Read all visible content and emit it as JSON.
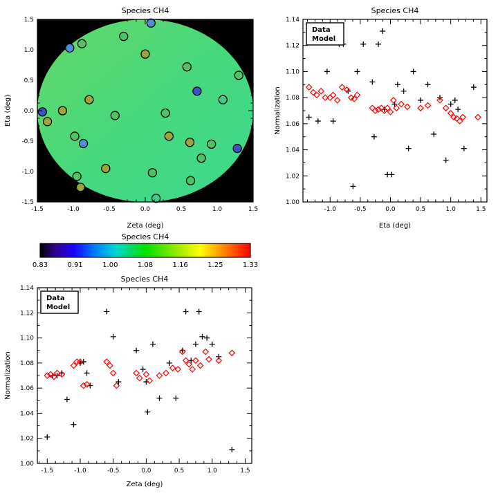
{
  "figure": {
    "background": "#ffffff"
  },
  "chart_data": [
    {
      "id": "disk",
      "type": "scatter",
      "title": "Species CH4",
      "xlabel": "Zeta (deg)",
      "ylabel": "Eta (deg)",
      "xlim": [
        -1.5,
        1.5
      ],
      "ylim": [
        -1.5,
        1.5
      ],
      "xticks": [
        -1.5,
        -1.0,
        -0.5,
        0.0,
        0.5,
        1.0,
        1.5
      ],
      "xtick_labels": [
        "-1.5",
        "-1.0",
        "-0.5",
        "0.0",
        "0.5",
        "1.0",
        "1.5"
      ],
      "yticks": [
        -1.5,
        -1.0,
        -0.5,
        0.0,
        0.5,
        1.0,
        1.5
      ],
      "ytick_labels": [
        "-1.5",
        "-1.0",
        "-0.5",
        "0.0",
        "0.5",
        "1.0",
        "1.5"
      ],
      "xminor": 3,
      "yminor": 3,
      "disk": {
        "outside": "#000000",
        "gradient": [
          "#62d868",
          "#48d87c",
          "#3bd98e"
        ]
      },
      "points": [
        {
          "x": -1.43,
          "y": -0.02,
          "c": "#3a52c4"
        },
        {
          "x": -1.36,
          "y": -0.18,
          "c": "#9aa63c"
        },
        {
          "x": -1.05,
          "y": 1.03,
          "c": "#4f8fd8"
        },
        {
          "x": -0.88,
          "y": 1.1,
          "c": "#4fc364"
        },
        {
          "x": -0.3,
          "y": 1.22,
          "c": "#4fc364"
        },
        {
          "x": 0.08,
          "y": 1.44,
          "c": "#4f8fd8"
        },
        {
          "x": 0.0,
          "y": 0.93,
          "c": "#9aa63c"
        },
        {
          "x": 0.58,
          "y": 0.72,
          "c": "#4fc364"
        },
        {
          "x": 0.72,
          "y": 0.32,
          "c": "#3a52c4"
        },
        {
          "x": 1.3,
          "y": 0.58,
          "c": "#4fc364"
        },
        {
          "x": 1.08,
          "y": 0.18,
          "c": "#45c98a"
        },
        {
          "x": -1.15,
          "y": 0.0,
          "c": "#9aa63c"
        },
        {
          "x": -0.78,
          "y": 0.18,
          "c": "#9aa63c"
        },
        {
          "x": -0.42,
          "y": -0.08,
          "c": "#4fc364"
        },
        {
          "x": 0.28,
          "y": -0.04,
          "c": "#4fc364"
        },
        {
          "x": 0.33,
          "y": -0.42,
          "c": "#9aa63c"
        },
        {
          "x": 0.62,
          "y": -0.52,
          "c": "#9aa63c"
        },
        {
          "x": 0.92,
          "y": -0.55,
          "c": "#4fc364"
        },
        {
          "x": 1.28,
          "y": -0.62,
          "c": "#3a52c4"
        },
        {
          "x": 0.78,
          "y": -0.78,
          "c": "#4fc364"
        },
        {
          "x": -0.98,
          "y": -0.42,
          "c": "#4fc364"
        },
        {
          "x": -0.86,
          "y": -0.54,
          "c": "#4f8fd8"
        },
        {
          "x": -0.55,
          "y": -0.95,
          "c": "#9aa63c"
        },
        {
          "x": -0.95,
          "y": -1.08,
          "c": "#4fc364"
        },
        {
          "x": -0.9,
          "y": -1.26,
          "c": "#9aa63c"
        },
        {
          "x": 0.1,
          "y": -1.02,
          "c": "#4fc364"
        },
        {
          "x": 0.63,
          "y": -1.15,
          "c": "#4fc364"
        },
        {
          "x": 0.15,
          "y": -1.44,
          "c": "#45c98a"
        }
      ]
    },
    {
      "id": "eta",
      "type": "scatter",
      "title": "Species CH4",
      "xlabel": "Eta (deg)",
      "ylabel": "Normalization",
      "xlim": [
        -1.45,
        1.6
      ],
      "ylim": [
        1.0,
        1.14
      ],
      "xticks": [
        -1.0,
        -0.5,
        0.0,
        0.5,
        1.0,
        1.5
      ],
      "xtick_labels": [
        "-1.0",
        "-0.5",
        "0.0",
        "0.5",
        "1.0",
        "1.5"
      ],
      "yticks": [
        1.0,
        1.02,
        1.04,
        1.06,
        1.08,
        1.1,
        1.12,
        1.14
      ],
      "ytick_labels": [
        "1.00",
        "1.02",
        "1.04",
        "1.06",
        "1.08",
        "1.10",
        "1.12",
        "1.14"
      ],
      "xminor": 3,
      "yminor": 1,
      "legend": true,
      "series": [
        {
          "name": "Data",
          "marker": "plus",
          "color": "#000000",
          "points": [
            [
              -1.35,
              1.065
            ],
            [
              -1.2,
              1.062
            ],
            [
              -1.05,
              1.1
            ],
            [
              -0.95,
              1.062
            ],
            [
              -0.85,
              1.121
            ],
            [
              -0.78,
              1.121
            ],
            [
              -0.7,
              1.085
            ],
            [
              -0.62,
              1.012
            ],
            [
              -0.55,
              1.1
            ],
            [
              -0.45,
              1.121
            ],
            [
              -0.3,
              1.092
            ],
            [
              -0.27,
              1.05
            ],
            [
              -0.2,
              1.121
            ],
            [
              -0.13,
              1.131
            ],
            [
              -0.1,
              1.071
            ],
            [
              -0.05,
              1.021
            ],
            [
              0.02,
              1.021
            ],
            [
              0.07,
              1.075
            ],
            [
              0.12,
              1.09
            ],
            [
              0.22,
              1.085
            ],
            [
              0.3,
              1.041
            ],
            [
              0.38,
              1.1
            ],
            [
              0.5,
              1.078
            ],
            [
              0.62,
              1.09
            ],
            [
              0.72,
              1.052
            ],
            [
              0.82,
              1.08
            ],
            [
              0.92,
              1.032
            ],
            [
              1.0,
              1.075
            ],
            [
              1.07,
              1.078
            ],
            [
              1.12,
              1.071
            ],
            [
              1.22,
              1.041
            ],
            [
              1.38,
              1.088
            ]
          ]
        },
        {
          "name": "Model",
          "marker": "diamond",
          "color": "#ff0000",
          "points": [
            [
              -1.35,
              1.088
            ],
            [
              -1.28,
              1.084
            ],
            [
              -1.22,
              1.082
            ],
            [
              -1.15,
              1.085
            ],
            [
              -1.08,
              1.08
            ],
            [
              -1.0,
              1.08
            ],
            [
              -0.95,
              1.082
            ],
            [
              -0.88,
              1.078
            ],
            [
              -0.8,
              1.088
            ],
            [
              -0.72,
              1.086
            ],
            [
              -0.65,
              1.08
            ],
            [
              -0.6,
              1.079
            ],
            [
              -0.55,
              1.082
            ],
            [
              -0.3,
              1.072
            ],
            [
              -0.25,
              1.07
            ],
            [
              -0.2,
              1.071
            ],
            [
              -0.15,
              1.072
            ],
            [
              -0.1,
              1.07
            ],
            [
              -0.05,
              1.072
            ],
            [
              0.0,
              1.069
            ],
            [
              0.05,
              1.078
            ],
            [
              0.1,
              1.072
            ],
            [
              0.18,
              1.075
            ],
            [
              0.28,
              1.073
            ],
            [
              0.5,
              1.072
            ],
            [
              0.62,
              1.074
            ],
            [
              0.82,
              1.078
            ],
            [
              0.92,
              1.072
            ],
            [
              1.0,
              1.068
            ],
            [
              1.05,
              1.065
            ],
            [
              1.1,
              1.064
            ],
            [
              1.15,
              1.062
            ],
            [
              1.2,
              1.065
            ],
            [
              1.45,
              1.065
            ]
          ]
        }
      ]
    },
    {
      "id": "colorbar",
      "type": "colorbar",
      "title": "Species CH4",
      "labels": [
        "0.83",
        "0.91",
        "1.00",
        "1.08",
        "1.16",
        "1.25",
        "1.33"
      ],
      "stops": [
        [
          0,
          "#000000"
        ],
        [
          0.07,
          "#30008c"
        ],
        [
          0.16,
          "#1b00ff"
        ],
        [
          0.26,
          "#007cff"
        ],
        [
          0.36,
          "#00d6d0"
        ],
        [
          0.5,
          "#00e000"
        ],
        [
          0.64,
          "#8fe800"
        ],
        [
          0.76,
          "#ffff00"
        ],
        [
          0.87,
          "#ff8a00"
        ],
        [
          1,
          "#ff0000"
        ]
      ]
    },
    {
      "id": "zeta",
      "type": "scatter",
      "title": "Species CH4",
      "xlabel": "Zeta (deg)",
      "ylabel": "Normalization",
      "xlim": [
        -1.65,
        1.6
      ],
      "ylim": [
        1.0,
        1.14
      ],
      "xticks": [
        -1.5,
        -1.0,
        -0.5,
        0.0,
        0.5,
        1.0,
        1.5
      ],
      "xtick_labels": [
        "-1.5",
        "-1.0",
        "-0.5",
        "0.0",
        "0.5",
        "1.0",
        "1.5"
      ],
      "yticks": [
        1.0,
        1.02,
        1.04,
        1.06,
        1.08,
        1.1,
        1.12,
        1.14
      ],
      "ytick_labels": [
        "1.00",
        "1.02",
        "1.04",
        "1.06",
        "1.08",
        "1.10",
        "1.12",
        "1.14"
      ],
      "xminor": 3,
      "yminor": 1,
      "legend": true,
      "series": [
        {
          "name": "Data",
          "marker": "plus",
          "color": "#000000",
          "points": [
            [
              -1.5,
              1.021
            ],
            [
              -1.42,
              1.07
            ],
            [
              -1.35,
              1.07
            ],
            [
              -1.28,
              1.072
            ],
            [
              -1.2,
              1.051
            ],
            [
              -1.1,
              1.031
            ],
            [
              -1.0,
              1.08
            ],
            [
              -0.95,
              1.081
            ],
            [
              -0.9,
              1.072
            ],
            [
              -0.85,
              1.062
            ],
            [
              -0.6,
              1.121
            ],
            [
              -0.5,
              1.101
            ],
            [
              -0.42,
              1.065
            ],
            [
              -0.15,
              1.09
            ],
            [
              -0.05,
              1.075
            ],
            [
              0.0,
              1.065
            ],
            [
              0.02,
              1.041
            ],
            [
              0.1,
              1.095
            ],
            [
              0.2,
              1.052
            ],
            [
              0.35,
              1.08
            ],
            [
              0.45,
              1.052
            ],
            [
              0.55,
              1.09
            ],
            [
              0.6,
              1.121
            ],
            [
              0.68,
              1.082
            ],
            [
              0.75,
              1.095
            ],
            [
              0.8,
              1.121
            ],
            [
              0.85,
              1.101
            ],
            [
              0.92,
              1.1
            ],
            [
              1.0,
              1.095
            ],
            [
              1.1,
              1.085
            ],
            [
              1.3,
              1.011
            ]
          ]
        },
        {
          "name": "Model",
          "marker": "diamond",
          "color": "#ff0000",
          "points": [
            [
              -1.5,
              1.07
            ],
            [
              -1.45,
              1.071
            ],
            [
              -1.4,
              1.069
            ],
            [
              -1.35,
              1.072
            ],
            [
              -1.28,
              1.071
            ],
            [
              -1.1,
              1.078
            ],
            [
              -1.05,
              1.081
            ],
            [
              -1.0,
              1.081
            ],
            [
              -0.95,
              1.062
            ],
            [
              -0.9,
              1.063
            ],
            [
              -0.6,
              1.081
            ],
            [
              -0.55,
              1.078
            ],
            [
              -0.5,
              1.072
            ],
            [
              -0.45,
              1.062
            ],
            [
              -0.15,
              1.072
            ],
            [
              -0.1,
              1.068
            ],
            [
              0.0,
              1.071
            ],
            [
              0.05,
              1.066
            ],
            [
              0.2,
              1.07
            ],
            [
              0.3,
              1.072
            ],
            [
              0.4,
              1.076
            ],
            [
              0.48,
              1.075
            ],
            [
              0.55,
              1.089
            ],
            [
              0.6,
              1.082
            ],
            [
              0.65,
              1.079
            ],
            [
              0.7,
              1.075
            ],
            [
              0.75,
              1.082
            ],
            [
              0.82,
              1.078
            ],
            [
              0.9,
              1.089
            ],
            [
              0.95,
              1.083
            ],
            [
              1.1,
              1.082
            ],
            [
              1.3,
              1.088
            ]
          ]
        }
      ]
    }
  ]
}
